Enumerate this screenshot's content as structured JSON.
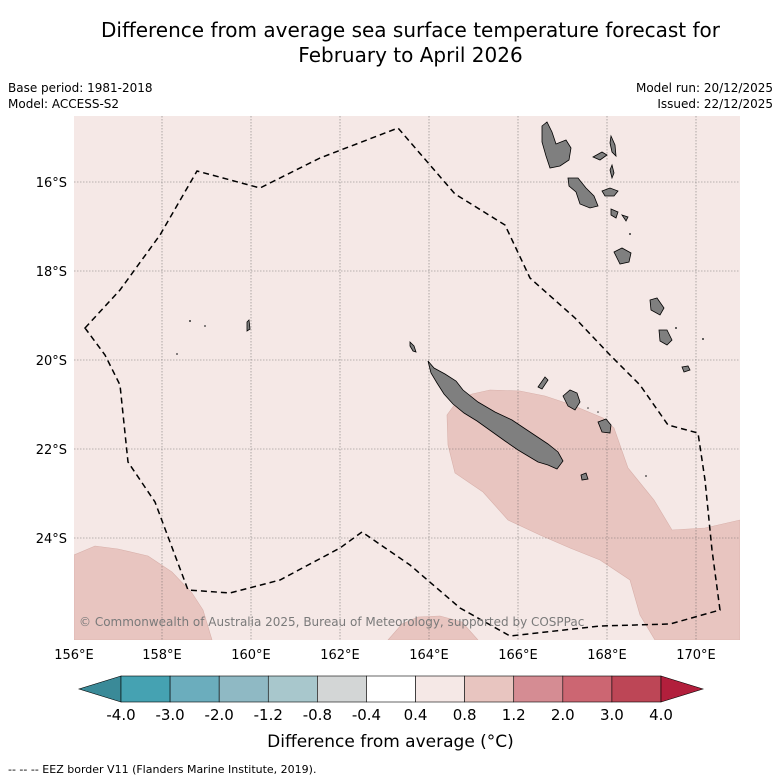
{
  "title_line1": "Difference from average sea surface temperature forecast for",
  "title_line2": "February to April 2026",
  "base_period": "Base period: 1981-2018",
  "model": "Model: ACCESS-S2",
  "model_run": "Model run: 20/12/2025",
  "issued": "Issued: 22/12/2025",
  "latitude_labels": [
    "16°S",
    "18°S",
    "20°S",
    "22°S",
    "24°S"
  ],
  "longitude_labels": [
    "156°E",
    "158°E",
    "160°E",
    "162°E",
    "164°E",
    "166°E",
    "168°E",
    "170°E"
  ],
  "copyright": "© Commonwealth of Australia 2025, Bureau of Meteorology, supported by COSPPac",
  "colorbar": {
    "ticks": [
      "-4.0",
      "-3.0",
      "-2.0",
      "-1.2",
      "-0.8",
      "-0.4",
      "0.4",
      "0.8",
      "1.2",
      "2.0",
      "3.0",
      "4.0"
    ],
    "colors": [
      "#3a8a98",
      "#45a2b2",
      "#6badbd",
      "#8fb9c4",
      "#a8c7cc",
      "#d3d6d6",
      "#ffffff",
      "#f5e8e6",
      "#e8c5c0",
      "#d58c93",
      "#cc6672",
      "#bd4656",
      "#b21f3c"
    ],
    "title": "Difference from average (°C)"
  },
  "footnote": "-- -- -- EEZ border V11 (Flanders Marine Institute, 2019).",
  "colors": {
    "background_anomaly": "#f5e8e6",
    "warm_anomaly": "#e8c5c0",
    "land": "#7f7f7f"
  }
}
